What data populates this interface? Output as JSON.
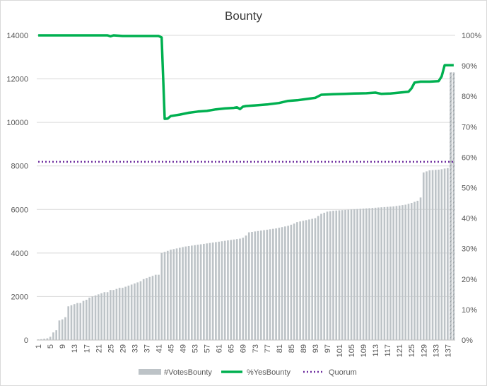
{
  "chart_data": {
    "type": "bar+line",
    "title": "Bounty",
    "x_categories_count": 139,
    "x_tick_labels": [
      "1",
      "5",
      "9",
      "13",
      "17",
      "21",
      "25",
      "29",
      "33",
      "37",
      "41",
      "45",
      "49",
      "53",
      "57",
      "61",
      "65",
      "69",
      "73",
      "77",
      "81",
      "85",
      "89",
      "93",
      "97",
      "101",
      "105",
      "109",
      "113",
      "117",
      "121",
      "125",
      "129",
      "133",
      "137"
    ],
    "y_left": {
      "min": 0,
      "max": 14000,
      "step": 2000,
      "tick_labels": [
        "0",
        "2000",
        "4000",
        "6000",
        "8000",
        "10000",
        "12000",
        "14000"
      ]
    },
    "y_right": {
      "min": 0,
      "max": 1,
      "step": 0.1,
      "tick_labels": [
        "0%",
        "10%",
        "20%",
        "30%",
        "40%",
        "50%",
        "60%",
        "70%",
        "80%",
        "90%",
        "100%"
      ]
    },
    "grid": "horizontal",
    "legend_position": "bottom",
    "series": [
      {
        "name": "#VotesBounty",
        "kind": "bar",
        "axis": "left",
        "color": "#BDC3C7",
        "values": [
          30,
          40,
          60,
          80,
          150,
          350,
          450,
          900,
          950,
          1050,
          1550,
          1600,
          1650,
          1700,
          1700,
          1800,
          1850,
          1950,
          2000,
          2050,
          2100,
          2150,
          2200,
          2200,
          2300,
          2300,
          2350,
          2400,
          2400,
          2450,
          2500,
          2550,
          2600,
          2650,
          2700,
          2800,
          2850,
          2900,
          2950,
          3000,
          3000,
          4000,
          4050,
          4100,
          4150,
          4180,
          4210,
          4240,
          4270,
          4300,
          4320,
          4340,
          4360,
          4380,
          4400,
          4420,
          4440,
          4460,
          4480,
          4500,
          4520,
          4540,
          4560,
          4580,
          4600,
          4620,
          4640,
          4660,
          4700,
          4800,
          4950,
          4970,
          4990,
          5010,
          5030,
          5050,
          5070,
          5090,
          5110,
          5130,
          5160,
          5190,
          5220,
          5250,
          5300,
          5350,
          5420,
          5450,
          5480,
          5510,
          5540,
          5570,
          5600,
          5700,
          5800,
          5850,
          5900,
          5920,
          5940,
          5950,
          5960,
          5970,
          5980,
          5990,
          6000,
          6010,
          6020,
          6030,
          6040,
          6050,
          6060,
          6070,
          6080,
          6090,
          6100,
          6110,
          6120,
          6130,
          6140,
          6160,
          6180,
          6200,
          6220,
          6260,
          6300,
          6350,
          6400,
          6550,
          7700,
          7750,
          7800,
          7810,
          7820,
          7830,
          7850,
          7880,
          7900,
          12300,
          12300
        ],
        "hatched_last": 2
      },
      {
        "name": "%YesBounty",
        "kind": "line",
        "axis": "right",
        "color": "#00B050",
        "points": [
          [
            1,
            1.0
          ],
          [
            24,
            1.0
          ],
          [
            25,
            0.997
          ],
          [
            26,
            1.0
          ],
          [
            29,
            0.998
          ],
          [
            41,
            0.998
          ],
          [
            42,
            0.993
          ],
          [
            43,
            0.726
          ],
          [
            44,
            0.727
          ],
          [
            45,
            0.735
          ],
          [
            48,
            0.74
          ],
          [
            51,
            0.746
          ],
          [
            54,
            0.75
          ],
          [
            57,
            0.752
          ],
          [
            60,
            0.757
          ],
          [
            63,
            0.76
          ],
          [
            66,
            0.762
          ],
          [
            67,
            0.764
          ],
          [
            68,
            0.758
          ],
          [
            69,
            0.766
          ],
          [
            70,
            0.768
          ],
          [
            73,
            0.77
          ],
          [
            77,
            0.773
          ],
          [
            81,
            0.778
          ],
          [
            84,
            0.785
          ],
          [
            87,
            0.787
          ],
          [
            90,
            0.791
          ],
          [
            93,
            0.795
          ],
          [
            95,
            0.805
          ],
          [
            99,
            0.807
          ],
          [
            103,
            0.808
          ],
          [
            106,
            0.809
          ],
          [
            110,
            0.81
          ],
          [
            113,
            0.812
          ],
          [
            115,
            0.808
          ],
          [
            118,
            0.809
          ],
          [
            121,
            0.812
          ],
          [
            124,
            0.815
          ],
          [
            125,
            0.826
          ],
          [
            126,
            0.845
          ],
          [
            128,
            0.848
          ],
          [
            131,
            0.848
          ],
          [
            134,
            0.85
          ],
          [
            135,
            0.865
          ],
          [
            136,
            0.902
          ],
          [
            139,
            0.902
          ]
        ]
      },
      {
        "name": "Quorum",
        "kind": "line",
        "style": "dotted",
        "axis": "right",
        "color": "#7030A0",
        "values": [
          0.585
        ]
      }
    ]
  }
}
